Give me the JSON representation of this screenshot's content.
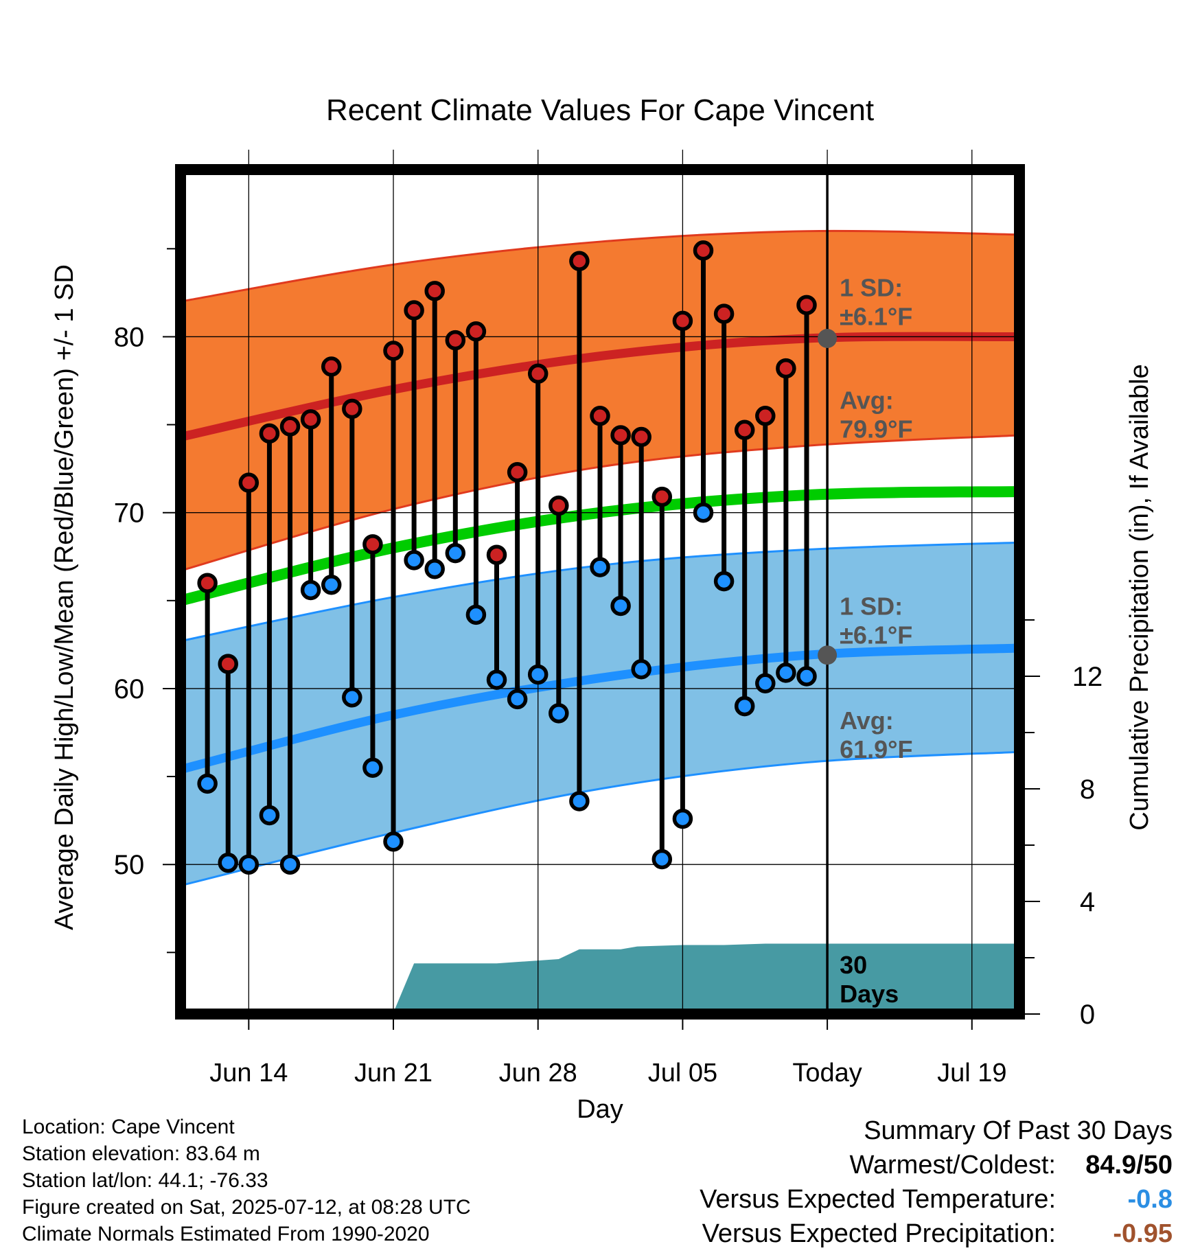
{
  "chart_data": {
    "type": "line",
    "title": "Recent Climate Values For Cape Vincent",
    "xlabel": "Day",
    "ylabel": "Average Daily High/Low/Mean (Red/Blue/Green) +/- 1 SD",
    "ylabel_right": "Cumulative Precipitation (in), If Available",
    "x_ticks": [
      "Jun 14",
      "Jun 21",
      "Jun 28",
      "Jul 05",
      "Today",
      "Jul 19"
    ],
    "x_tick_days": [
      3,
      10,
      17,
      24,
      31,
      38
    ],
    "xlim": [
      -0.3,
      40.3
    ],
    "ylim": [
      41.5,
      89.5
    ],
    "y_ticks": [
      50,
      60,
      70,
      80
    ],
    "precip_ylim": [
      0,
      30
    ],
    "precip_ticks": [
      0,
      4,
      8,
      12
    ],
    "grid": true,
    "days": [
      1,
      2,
      3,
      4,
      5,
      6,
      7,
      8,
      9,
      10,
      11,
      12,
      13,
      14,
      15,
      16,
      17,
      18,
      19,
      20,
      21,
      22,
      23,
      24,
      25,
      26,
      27,
      28,
      29,
      30
    ],
    "series": [
      {
        "name": "High",
        "color": "#cc2222",
        "values": [
          66.0,
          61.4,
          71.7,
          74.5,
          74.9,
          75.3,
          78.3,
          75.9,
          68.2,
          79.2,
          81.5,
          82.6,
          79.8,
          80.3,
          67.6,
          72.3,
          77.9,
          70.4,
          84.3,
          75.5,
          74.4,
          74.3,
          70.9,
          80.9,
          84.9,
          81.3,
          74.7,
          75.5,
          78.2,
          81.8
        ]
      },
      {
        "name": "Low",
        "color": "#1e90ff",
        "values": [
          54.6,
          50.1,
          50.0,
          52.8,
          50.0,
          65.6,
          65.9,
          59.5,
          55.5,
          51.3,
          67.3,
          66.8,
          67.7,
          64.2,
          60.5,
          59.4,
          60.8,
          58.6,
          53.6,
          66.9,
          64.7,
          61.1,
          50.3,
          52.6,
          70.0,
          66.1,
          59.0,
          60.3,
          60.9,
          60.7
        ]
      }
    ],
    "normals": {
      "days": [
        -0.3,
        10,
        20,
        30,
        40.3
      ],
      "high_avg": [
        74.3,
        77.0,
        78.9,
        79.9,
        80.0
      ],
      "high_sd_upper": [
        82.0,
        84.1,
        85.4,
        86.0,
        85.8
      ],
      "high_sd_lower": [
        66.7,
        70.2,
        72.6,
        73.8,
        74.4
      ],
      "mean_avg": [
        65.0,
        68.0,
        70.0,
        71.0,
        71.2
      ],
      "low_avg": [
        55.4,
        58.5,
        60.6,
        61.9,
        62.3
      ],
      "low_sd_upper": [
        62.7,
        65.2,
        67.0,
        67.9,
        68.3
      ],
      "low_sd_lower": [
        48.8,
        51.8,
        54.3,
        55.8,
        56.4
      ],
      "high_sd_color": "#f47a30",
      "low_sd_color": "#80c0e6",
      "mean_color": "#00cc00"
    },
    "precip": {
      "color": "#479aa3",
      "points": [
        [
          -0.3,
          0
        ],
        [
          9,
          0
        ],
        [
          10,
          0.05
        ],
        [
          11,
          1.8
        ],
        [
          15,
          1.8
        ],
        [
          16,
          1.85
        ],
        [
          18,
          1.95
        ],
        [
          19,
          2.3
        ],
        [
          21,
          2.3
        ],
        [
          21.8,
          2.4
        ],
        [
          24,
          2.45
        ],
        [
          26,
          2.45
        ],
        [
          28,
          2.5
        ],
        [
          31,
          2.5
        ],
        [
          40.3,
          2.5
        ]
      ]
    },
    "today_day": 31,
    "today_high_avg": 79.9,
    "today_low_avg": 61.9,
    "annotations": {
      "high_sd": [
        "1 SD:",
        "±6.1°F"
      ],
      "high_avg": [
        "Avg:",
        "79.9°F"
      ],
      "low_sd": [
        "1 SD:",
        "±6.1°F"
      ],
      "low_avg": [
        "Avg:",
        "61.9°F"
      ],
      "period": [
        "30",
        "Days"
      ]
    }
  },
  "info": {
    "location": "Location: Cape Vincent",
    "elevation": "Station elevation: 83.64 m",
    "latlon": "Station lat/lon: 44.1; -76.33",
    "created": "Figure created on Sat, 2025-07-12, at 08:28 UTC",
    "normals": "Climate Normals Estimated From 1990-2020"
  },
  "summary": {
    "heading": "Summary Of Past 30 Days",
    "warmest_label": "Warmest/Coldest:",
    "warmest_value": "84.9/50",
    "temp_label": "Versus Expected Temperature:",
    "temp_value": "-0.8",
    "temp_color": "#2b8ee3",
    "precip_label": "Versus Expected Precipitation:",
    "precip_value": "-0.95",
    "precip_color": "#a0522d"
  }
}
